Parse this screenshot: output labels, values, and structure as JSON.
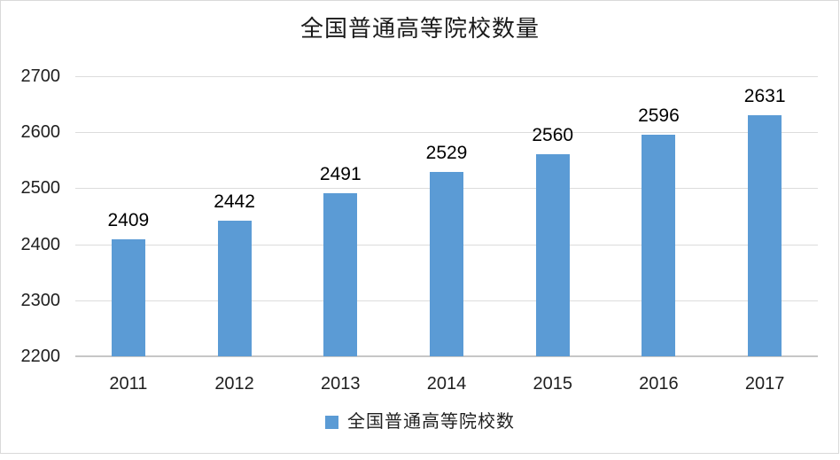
{
  "figure": {
    "background": "#ffffff",
    "frame_border_color": "#d9d9d9"
  },
  "chart_data": {
    "type": "bar",
    "title": "全国普通高等院校数量",
    "categories": [
      "2011",
      "2012",
      "2013",
      "2014",
      "2015",
      "2016",
      "2017"
    ],
    "series": [
      {
        "name": "全国普通高等院校数",
        "values": [
          2409,
          2442,
          2491,
          2529,
          2560,
          2596,
          2631
        ]
      }
    ],
    "xlabel": "",
    "ylabel": "",
    "ylim": [
      2200,
      2700
    ],
    "yticks": [
      2200,
      2300,
      2400,
      2500,
      2600,
      2700
    ],
    "grid": true,
    "data_labels": true,
    "legend_position": "bottom",
    "bar_color": "#5b9bd5",
    "gridline_color": "#dcdcdc",
    "axis_line_color": "#c6c6c6",
    "label_text_color": "#000000",
    "tick_text_color": "#1f1f1f"
  },
  "legend": {
    "marker_color": "#5b9bd5",
    "label": "全国普通高等院校数"
  }
}
